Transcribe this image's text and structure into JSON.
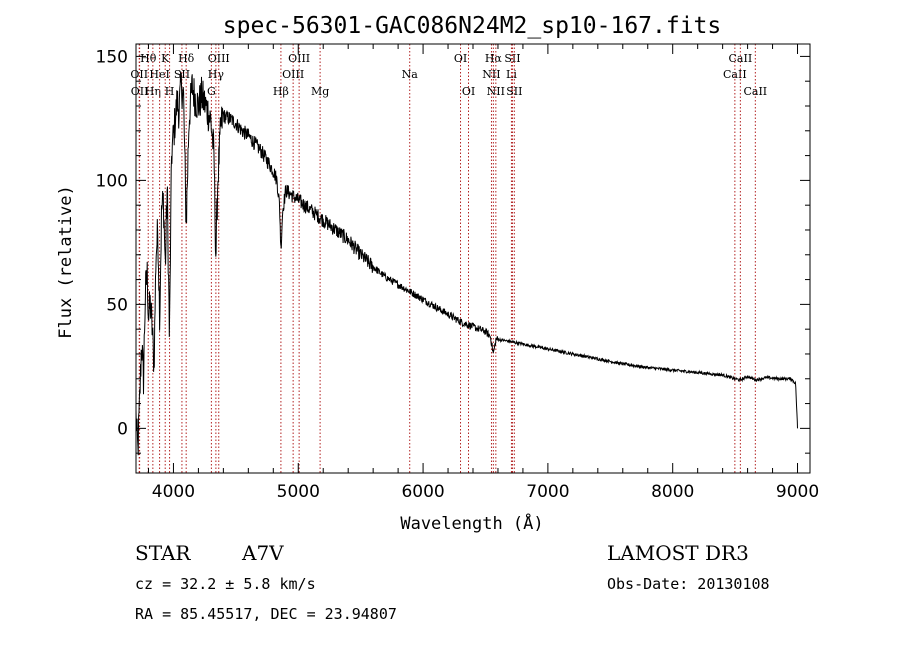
{
  "chart_data": {
    "type": "line",
    "title": "spec-56301-GAC086N24M2_sp10-167.fits",
    "xlabel": "Wavelength (Å)",
    "ylabel": "Flux (relative)",
    "xlim": [
      3700,
      9100
    ],
    "ylim": [
      -18,
      155
    ],
    "xticks": [
      4000,
      5000,
      6000,
      7000,
      8000,
      9000
    ],
    "xtick_labels": [
      "4000",
      "5000",
      "6000",
      "7000",
      "8000",
      "9000"
    ],
    "yticks": [
      0,
      50,
      100,
      150
    ],
    "ytick_labels": [
      "0",
      "50",
      "100",
      "150"
    ],
    "line_color": "#000000",
    "marker_color": "#b22222",
    "spectrum": {
      "anchors": [
        [
          3700,
          5
        ],
        [
          3715,
          -10
        ],
        [
          3730,
          12
        ],
        [
          3745,
          35
        ],
        [
          3760,
          20
        ],
        [
          3775,
          55
        ],
        [
          3790,
          62
        ],
        [
          3800,
          45
        ],
        [
          3815,
          50
        ],
        [
          3830,
          40
        ],
        [
          3845,
          25
        ],
        [
          3860,
          70
        ],
        [
          3875,
          80
        ],
        [
          3890,
          45
        ],
        [
          3905,
          88
        ],
        [
          3920,
          92
        ],
        [
          3935,
          65
        ],
        [
          3950,
          98
        ],
        [
          3968,
          35
        ],
        [
          3985,
          110
        ],
        [
          4000,
          118
        ],
        [
          4015,
          125
        ],
        [
          4030,
          132
        ],
        [
          4045,
          128
        ],
        [
          4060,
          138
        ],
        [
          4080,
          135
        ],
        [
          4102,
          82
        ],
        [
          4125,
          125
        ],
        [
          4150,
          138
        ],
        [
          4175,
          133
        ],
        [
          4200,
          130
        ],
        [
          4225,
          134
        ],
        [
          4250,
          131
        ],
        [
          4275,
          128
        ],
        [
          4300,
          124
        ],
        [
          4325,
          110
        ],
        [
          4340,
          68
        ],
        [
          4355,
          100
        ],
        [
          4380,
          122
        ],
        [
          4400,
          126
        ],
        [
          4450,
          125
        ],
        [
          4500,
          123
        ],
        [
          4550,
          120
        ],
        [
          4600,
          118
        ],
        [
          4650,
          115
        ],
        [
          4700,
          112
        ],
        [
          4750,
          108
        ],
        [
          4800,
          104
        ],
        [
          4830,
          100
        ],
        [
          4850,
          90
        ],
        [
          4861,
          72
        ],
        [
          4875,
          88
        ],
        [
          4900,
          96
        ],
        [
          4950,
          94
        ],
        [
          5000,
          92
        ],
        [
          5100,
          88
        ],
        [
          5200,
          84
        ],
        [
          5300,
          80
        ],
        [
          5400,
          76
        ],
        [
          5500,
          70
        ],
        [
          5600,
          65
        ],
        [
          5700,
          61
        ],
        [
          5800,
          58
        ],
        [
          5900,
          55
        ],
        [
          6000,
          52
        ],
        [
          6100,
          49
        ],
        [
          6200,
          46
        ],
        [
          6300,
          43
        ],
        [
          6400,
          41
        ],
        [
          6500,
          39
        ],
        [
          6540,
          37
        ],
        [
          6563,
          30
        ],
        [
          6585,
          36
        ],
        [
          6700,
          35
        ],
        [
          6800,
          34
        ],
        [
          7000,
          32
        ],
        [
          7200,
          30
        ],
        [
          7400,
          28
        ],
        [
          7600,
          26
        ],
        [
          7800,
          24.5
        ],
        [
          8000,
          23.5
        ],
        [
          8200,
          22.5
        ],
        [
          8400,
          21.5
        ],
        [
          8498,
          20
        ],
        [
          8542,
          19.5
        ],
        [
          8600,
          21
        ],
        [
          8662,
          19.5
        ],
        [
          8750,
          20.5
        ],
        [
          8850,
          20
        ],
        [
          8950,
          20
        ],
        [
          8985,
          18
        ],
        [
          9000,
          0
        ]
      ],
      "step": 3
    },
    "line_markers": [
      {
        "wavelength": 3726,
        "label": "OII",
        "row": 2
      },
      {
        "wavelength": 3729,
        "label": "OII",
        "row": 3
      },
      {
        "wavelength": 3798,
        "label": "Hθ",
        "row": 1
      },
      {
        "wavelength": 3835,
        "label": "Hη",
        "row": 3
      },
      {
        "wavelength": 3889,
        "label": "HeI",
        "row": 2
      },
      {
        "wavelength": 3934,
        "label": "K",
        "row": 1
      },
      {
        "wavelength": 3969,
        "label": "H",
        "row": 3
      },
      {
        "wavelength": 4068,
        "label": "SII",
        "row": 2
      },
      {
        "wavelength": 4102,
        "label": "Hδ",
        "row": 1
      },
      {
        "wavelength": 4304,
        "label": "G",
        "row": 3
      },
      {
        "wavelength": 4340,
        "label": "Hγ",
        "row": 2
      },
      {
        "wavelength": 4363,
        "label": "OIII",
        "row": 1
      },
      {
        "wavelength": 4861,
        "label": "Hβ",
        "row": 3
      },
      {
        "wavelength": 4959,
        "label": "OIII",
        "row": 2
      },
      {
        "wavelength": 5007,
        "label": "OIII",
        "row": 1
      },
      {
        "wavelength": 5175,
        "label": "Mg",
        "row": 3
      },
      {
        "wavelength": 5893,
        "label": "Na",
        "row": 2
      },
      {
        "wavelength": 6300,
        "label": "OI",
        "row": 1
      },
      {
        "wavelength": 6364,
        "label": "OI",
        "row": 3
      },
      {
        "wavelength": 6548,
        "label": "NII",
        "row": 2
      },
      {
        "wavelength": 6563,
        "label": "Hα",
        "row": 1
      },
      {
        "wavelength": 6583,
        "label": "NII",
        "row": 3
      },
      {
        "wavelength": 6708,
        "label": "Li",
        "row": 2
      },
      {
        "wavelength": 6716,
        "label": "SII",
        "row": 1
      },
      {
        "wavelength": 6731,
        "label": "SII",
        "row": 3
      },
      {
        "wavelength": 8498,
        "label": "CaII",
        "row": 2
      },
      {
        "wavelength": 8542,
        "label": "CaII",
        "row": 1
      },
      {
        "wavelength": 8662,
        "label": "CaII",
        "row": 3
      }
    ]
  },
  "info": {
    "class": "STAR",
    "subclass": "A7V",
    "survey": "LAMOST DR3",
    "cz": "cz = 32.2 ± 5.8 km/s",
    "obs_date": "Obs-Date: 20130108",
    "coords": "RA =  85.45517, DEC =  23.94807"
  }
}
